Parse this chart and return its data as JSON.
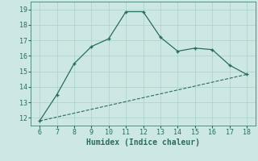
{
  "xlabel": "Humidex (Indice chaleur)",
  "bg_color": "#cde8e4",
  "line_color": "#2a6b60",
  "grid_color": "#b0d4cc",
  "line1_x": [
    6,
    7,
    8,
    9,
    10,
    11,
    12,
    13,
    14,
    15,
    16,
    17,
    18
  ],
  "line1_y": [
    11.8,
    13.5,
    15.5,
    16.6,
    17.1,
    18.85,
    18.85,
    17.2,
    16.3,
    16.5,
    16.4,
    15.4,
    14.8
  ],
  "line2_x": [
    6,
    18
  ],
  "line2_y": [
    11.8,
    14.8
  ],
  "xlim": [
    5.5,
    18.5
  ],
  "ylim": [
    11.5,
    19.5
  ],
  "xticks": [
    6,
    7,
    8,
    9,
    10,
    11,
    12,
    13,
    14,
    15,
    16,
    17,
    18
  ],
  "yticks": [
    12,
    13,
    14,
    15,
    16,
    17,
    18,
    19
  ]
}
